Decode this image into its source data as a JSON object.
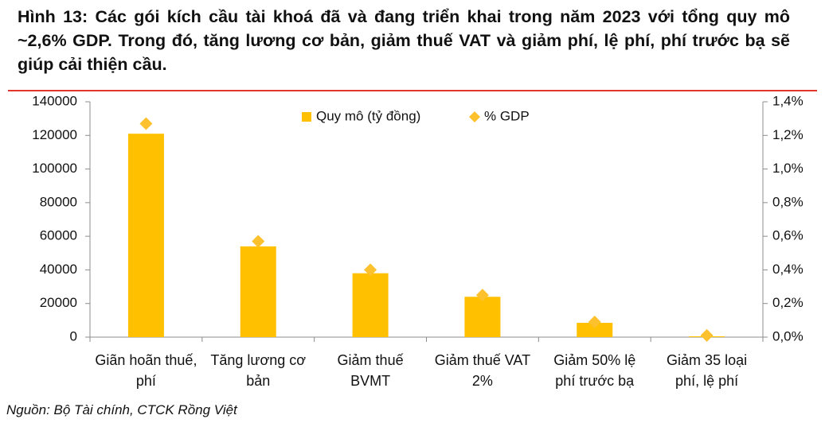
{
  "chart_data": {
    "type": "bar",
    "title": "Hình 13: Các gói kích cầu tài khoá đã và đang triển khai trong năm 2023 với tổng quy mô ~2,6% GDP. Trong đó, tăng lương cơ bản, giảm thuế VAT và giảm phí, lệ phí, phí trước bạ sẽ giúp cải thiện cầu.",
    "categories": [
      "Giãn hoãn thuế, phí",
      "Tăng lương cơ bản",
      "Giảm thuế BVMT",
      "Giảm thuế VAT 2%",
      "Giảm 50% lệ phí trước bạ",
      "Giảm 35 loại phí, lệ phí"
    ],
    "series": [
      {
        "name": "Quy mô (tỷ đồng)",
        "type": "bar",
        "color": "#ffc000",
        "values": [
          121000,
          54000,
          38000,
          24000,
          8500,
          500
        ]
      },
      {
        "name": "% GDP",
        "type": "scatter",
        "axis": "y2",
        "color": "#fcc12c",
        "values": [
          1.27,
          0.57,
          0.4,
          0.25,
          0.09,
          0.01
        ]
      }
    ],
    "ylim": [
      0,
      140000
    ],
    "yticks": [
      0,
      20000,
      40000,
      60000,
      80000,
      100000,
      120000,
      140000
    ],
    "y2lim": [
      0,
      1.4
    ],
    "y2ticks": [
      {
        "value": 0,
        "label": "0,0%"
      },
      {
        "value": 0.2,
        "label": "0,2%"
      },
      {
        "value": 0.4,
        "label": "0,4%"
      },
      {
        "value": 0.6,
        "label": "0,6%"
      },
      {
        "value": 0.8,
        "label": "0,8%"
      },
      {
        "value": 1.0,
        "label": "1,0%"
      },
      {
        "value": 1.2,
        "label": "1,2%"
      },
      {
        "value": 1.4,
        "label": "1,4%"
      }
    ],
    "legend": "top",
    "source": "Nguồn: Bộ Tài chính, CTCK Rồng Việt"
  }
}
